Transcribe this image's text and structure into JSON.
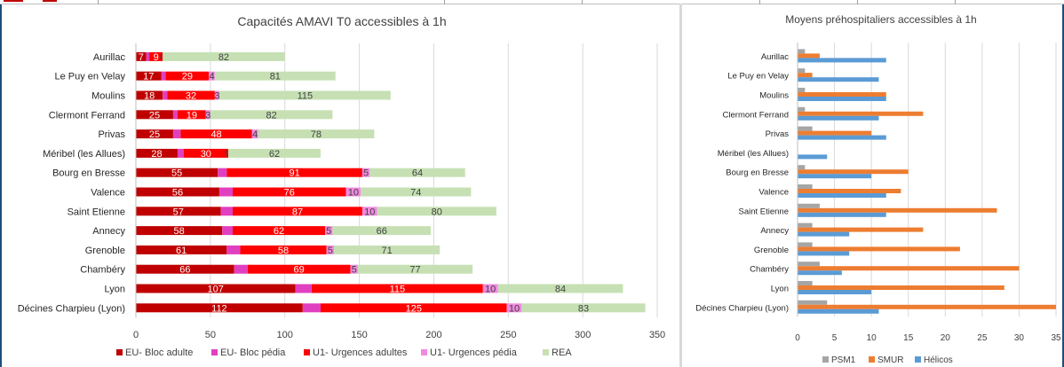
{
  "chart_data": [
    {
      "type": "bar",
      "orientation": "horizontal",
      "stacked": true,
      "title": "Capacités AMAVI T0 accessibles à 1h",
      "categories": [
        "Aurillac",
        "Le Puy en Velay",
        "Moulins",
        "Clermont Ferrand",
        "Privas",
        "Méribel (les Allues)",
        "Bourg en Bresse",
        "Valence",
        "Saint Etienne",
        "Annecy",
        "Grenoble",
        "Chambéry",
        "Lyon",
        "Décines Charpieu (Lyon)"
      ],
      "series": [
        {
          "name": "EU- Bloc adulte",
          "color": "#c00000",
          "values": [
            7,
            17,
            18,
            25,
            25,
            28,
            55,
            56,
            57,
            58,
            61,
            66,
            107,
            112
          ],
          "labels": [
            "7",
            "17",
            "18",
            "25",
            "25",
            "28",
            "55",
            "56",
            "57",
            "58",
            "61",
            "66",
            "107",
            "112"
          ]
        },
        {
          "name": "EU- Bloc pédia",
          "color": "#e040c0",
          "values": [
            2,
            3,
            3,
            3,
            5,
            4,
            6,
            9,
            8,
            7,
            9,
            9,
            11,
            12
          ],
          "labels": [
            "",
            "",
            "",
            "",
            "",
            "",
            "",
            "",
            "",
            "",
            "",
            "",
            "",
            ""
          ]
        },
        {
          "name": "U1- Urgences adultes",
          "color": "#ff0000",
          "values": [
            9,
            29,
            32,
            19,
            48,
            30,
            91,
            76,
            87,
            62,
            58,
            69,
            115,
            125
          ],
          "labels": [
            "9",
            "29",
            "32",
            "19",
            "48",
            "30",
            "91",
            "76",
            "87",
            "62",
            "58",
            "69",
            "115",
            "125"
          ]
        },
        {
          "name": "U1- Urgences pédia",
          "color": "#f08ae0",
          "values": [
            0,
            4,
            3,
            3,
            4,
            0,
            5,
            10,
            10,
            5,
            5,
            5,
            10,
            10
          ],
          "labels": [
            "0",
            "4",
            "3",
            "3",
            "4",
            "0",
            "5",
            "10",
            "10",
            "5",
            "5",
            "5",
            "10",
            "10"
          ]
        },
        {
          "name": "REA",
          "color": "#c6e0b4",
          "values": [
            82,
            81,
            115,
            82,
            78,
            62,
            64,
            74,
            80,
            66,
            71,
            77,
            84,
            83
          ],
          "labels": [
            "82",
            "81",
            "115",
            "82",
            "78",
            "62",
            "64",
            "74",
            "80",
            "66",
            "71",
            "77",
            "84",
            "83"
          ]
        }
      ],
      "xlim": [
        0,
        350
      ],
      "xticks": [
        "0",
        "50",
        "100",
        "150",
        "200",
        "250",
        "300",
        "350"
      ],
      "grid": true,
      "legend": "bottom"
    },
    {
      "type": "bar",
      "orientation": "horizontal",
      "stacked": false,
      "title": "Moyens préhospitaliers accessibles à 1h",
      "categories": [
        "Aurillac",
        "Le Puy en Velay",
        "Moulins",
        "Clermont Ferrand",
        "Privas",
        "Méribel (les Allues)",
        "Bourg en Bresse",
        "Valence",
        "Saint Etienne",
        "Annecy",
        "Grenoble",
        "Chambéry",
        "Lyon",
        "Décines Charpieu (Lyon)"
      ],
      "series": [
        {
          "name": "PSM1",
          "color": "#a5a5a5",
          "values": [
            1,
            1,
            1,
            1,
            2,
            0,
            1,
            2,
            3,
            2,
            2,
            3,
            2,
            4
          ]
        },
        {
          "name": "SMUR",
          "color": "#ed7d31",
          "values": [
            3,
            2,
            12,
            17,
            10,
            0,
            15,
            14,
            27,
            17,
            22,
            30,
            28,
            35
          ]
        },
        {
          "name": "Hélicos",
          "color": "#5b9bd5",
          "values": [
            12,
            11,
            12,
            11,
            12,
            4,
            10,
            12,
            12,
            7,
            7,
            6,
            10,
            11
          ]
        }
      ],
      "xlim": [
        0,
        35
      ],
      "xticks": [
        "0",
        "5",
        "10",
        "15",
        "20",
        "25",
        "30",
        "35"
      ],
      "grid": true,
      "legend": "bottom"
    }
  ]
}
